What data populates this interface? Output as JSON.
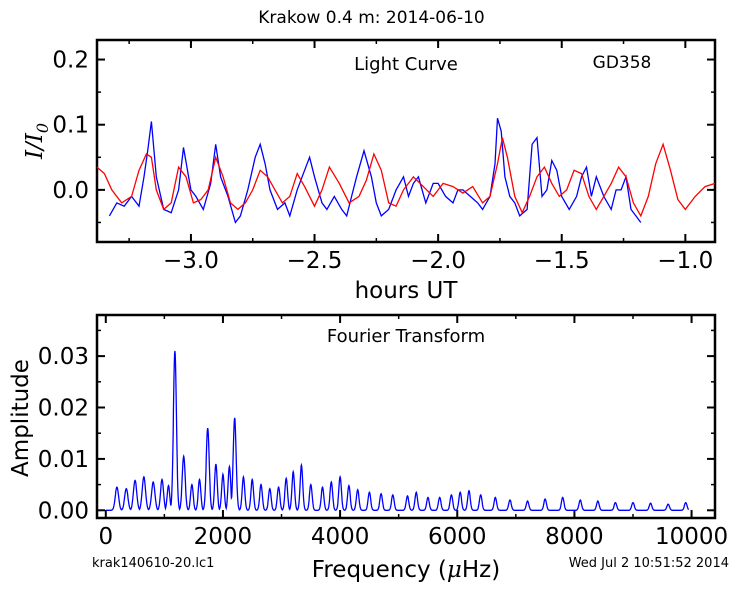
{
  "header": {
    "title": "Krakow 0.4 m:  2014-06-10",
    "footer_left": "krak140610-20.lc1",
    "footer_right": "Wed Jul  2 10:51:52 2014"
  },
  "chart_data": [
    {
      "type": "line",
      "title": "Light Curve",
      "annotation": "GD358",
      "xlabel": "hours UT",
      "ylabel_text": "I/I",
      "ylabel_subscript": "0",
      "xlim": [
        -3.38,
        -0.88
      ],
      "ylim": [
        -0.08,
        0.23
      ],
      "x_ticks": [
        -3.0,
        -2.5,
        -2.0,
        -1.5,
        -1.0
      ],
      "x_tick_labels": [
        "−3.0",
        "−2.5",
        "−2.0",
        "−1.5",
        "−1.0"
      ],
      "y_ticks": [
        0.0,
        0.1,
        0.2
      ],
      "y_tick_labels": [
        "0.0",
        "0.1",
        "0.2"
      ],
      "grid": false,
      "series": [
        {
          "color": "#0000ff",
          "x": [
            -3.33,
            -3.3,
            -3.27,
            -3.24,
            -3.21,
            -3.19,
            -3.175,
            -3.16,
            -3.14,
            -3.11,
            -3.08,
            -3.05,
            -3.03,
            -3.0,
            -2.98,
            -2.95,
            -2.92,
            -2.9,
            -2.88,
            -2.85,
            -2.82,
            -2.8,
            -2.77,
            -2.74,
            -2.72,
            -2.7,
            -2.68,
            -2.65,
            -2.62,
            -2.6,
            -2.57,
            -2.54,
            -2.52,
            -2.5,
            -2.47,
            -2.45,
            -2.42,
            -2.39,
            -2.37,
            -2.35,
            -2.33,
            -2.3,
            -2.27,
            -2.25,
            -2.23,
            -2.2,
            -2.17,
            -2.14,
            -2.12,
            -2.1,
            -2.08,
            -2.05,
            -2.02,
            -2.0,
            -1.97,
            -1.94,
            -1.92,
            -1.9,
            -1.87,
            -1.84,
            -1.82,
            -1.79,
            -1.77,
            -1.76,
            -1.745,
            -1.73,
            -1.71,
            -1.69,
            -1.67,
            -1.64,
            -1.62,
            -1.6,
            -1.58,
            -1.56,
            -1.54,
            -1.52,
            -1.5,
            -1.47,
            -1.44,
            -1.42,
            -1.4,
            -1.38,
            -1.36,
            -1.33,
            -1.3,
            -1.28,
            -1.26,
            -1.24,
            -1.22,
            -1.2,
            -1.18
          ],
          "y": [
            -0.04,
            -0.02,
            -0.025,
            -0.01,
            -0.025,
            0.02,
            0.06,
            0.105,
            0.02,
            -0.03,
            -0.035,
            0.0,
            0.065,
            0.0,
            -0.01,
            -0.03,
            0.01,
            0.07,
            0.02,
            -0.01,
            -0.05,
            -0.04,
            0.0,
            0.05,
            0.07,
            0.04,
            0.0,
            -0.03,
            -0.02,
            -0.04,
            0.0,
            0.03,
            0.05,
            0.02,
            -0.02,
            -0.03,
            -0.01,
            -0.03,
            -0.04,
            -0.01,
            0.02,
            0.06,
            0.02,
            -0.02,
            -0.04,
            -0.03,
            0.0,
            0.02,
            -0.01,
            0.01,
            0.02,
            -0.02,
            0.01,
            0.01,
            -0.01,
            -0.02,
            0.0,
            0.0,
            -0.01,
            -0.02,
            -0.03,
            -0.01,
            0.04,
            0.11,
            0.09,
            0.02,
            -0.01,
            -0.02,
            -0.04,
            -0.03,
            0.07,
            0.08,
            -0.01,
            0.0,
            0.045,
            0.03,
            -0.01,
            -0.03,
            -0.01,
            0.02,
            0.035,
            -0.01,
            0.02,
            -0.01,
            -0.03,
            0.0,
            0.0,
            0.02,
            -0.03,
            -0.04,
            -0.05
          ]
        },
        {
          "color": "#ff0000",
          "x": [
            -3.38,
            -3.35,
            -3.32,
            -3.28,
            -3.24,
            -3.21,
            -3.18,
            -3.16,
            -3.14,
            -3.11,
            -3.08,
            -3.05,
            -3.02,
            -2.99,
            -2.96,
            -2.93,
            -2.9,
            -2.87,
            -2.84,
            -2.81,
            -2.78,
            -2.75,
            -2.72,
            -2.69,
            -2.66,
            -2.63,
            -2.6,
            -2.57,
            -2.54,
            -2.5,
            -2.47,
            -2.44,
            -2.4,
            -2.36,
            -2.32,
            -2.29,
            -2.26,
            -2.23,
            -2.2,
            -2.17,
            -2.14,
            -2.1,
            -2.06,
            -2.02,
            -1.98,
            -1.94,
            -1.9,
            -1.86,
            -1.82,
            -1.79,
            -1.76,
            -1.74,
            -1.72,
            -1.69,
            -1.66,
            -1.63,
            -1.6,
            -1.57,
            -1.54,
            -1.51,
            -1.48,
            -1.45,
            -1.42,
            -1.39,
            -1.36,
            -1.33,
            -1.3,
            -1.27,
            -1.24,
            -1.21,
            -1.18,
            -1.15,
            -1.12,
            -1.09,
            -1.06,
            -1.03,
            -1.0,
            -0.96,
            -0.92,
            -0.88
          ],
          "y": [
            0.035,
            0.025,
            0.0,
            -0.02,
            -0.01,
            0.03,
            0.055,
            0.05,
            0.0,
            -0.03,
            -0.02,
            0.035,
            0.02,
            -0.02,
            -0.015,
            0.0,
            0.05,
            0.02,
            -0.02,
            -0.03,
            -0.02,
            0.0,
            0.03,
            0.02,
            0.0,
            -0.02,
            -0.01,
            0.025,
            0.005,
            -0.025,
            0.0,
            0.035,
            0.01,
            -0.02,
            -0.01,
            0.015,
            0.055,
            0.03,
            -0.02,
            -0.025,
            0.0,
            0.02,
            0.005,
            -0.01,
            0.01,
            0.005,
            -0.005,
            0.005,
            -0.02,
            -0.01,
            0.04,
            0.08,
            0.05,
            -0.01,
            -0.035,
            -0.01,
            0.02,
            0.035,
            0.01,
            -0.01,
            0.0,
            0.03,
            0.025,
            -0.01,
            -0.03,
            -0.01,
            0.01,
            0.035,
            0.02,
            -0.02,
            -0.04,
            -0.01,
            0.04,
            0.07,
            0.03,
            -0.015,
            -0.03,
            -0.01,
            0.005,
            0.01
          ]
        }
      ]
    },
    {
      "type": "line",
      "title": "Fourier Transform",
      "xlabel_text": "Frequency (",
      "xlabel_symbol": "μ",
      "xlabel_suffix": "Hz)",
      "ylabel": "Amplitude",
      "xlim": [
        -150,
        10400
      ],
      "ylim": [
        -0.0015,
        0.038
      ],
      "x_ticks": [
        0,
        2000,
        4000,
        6000,
        8000,
        10000
      ],
      "x_tick_labels": [
        "0",
        "2000",
        "4000",
        "6000",
        "8000",
        "10000"
      ],
      "y_ticks": [
        0.0,
        0.01,
        0.02,
        0.03
      ],
      "y_tick_labels": [
        "0.00",
        "0.01",
        "0.02",
        "0.03"
      ],
      "grid": false,
      "peaks": [
        {
          "f": 190,
          "a": 0.0045,
          "w": 45
        },
        {
          "f": 350,
          "a": 0.0042,
          "w": 45
        },
        {
          "f": 500,
          "a": 0.0058,
          "w": 45
        },
        {
          "f": 650,
          "a": 0.0065,
          "w": 45
        },
        {
          "f": 810,
          "a": 0.0055,
          "w": 45
        },
        {
          "f": 960,
          "a": 0.006,
          "w": 40
        },
        {
          "f": 1070,
          "a": 0.0048,
          "w": 35
        },
        {
          "f": 1180,
          "a": 0.031,
          "w": 40
        },
        {
          "f": 1330,
          "a": 0.0105,
          "w": 40
        },
        {
          "f": 1470,
          "a": 0.005,
          "w": 35
        },
        {
          "f": 1600,
          "a": 0.006,
          "w": 35
        },
        {
          "f": 1740,
          "a": 0.016,
          "w": 40
        },
        {
          "f": 1880,
          "a": 0.009,
          "w": 35
        },
        {
          "f": 2000,
          "a": 0.007,
          "w": 35
        },
        {
          "f": 2110,
          "a": 0.0085,
          "w": 35
        },
        {
          "f": 2200,
          "a": 0.018,
          "w": 40
        },
        {
          "f": 2350,
          "a": 0.0065,
          "w": 35
        },
        {
          "f": 2500,
          "a": 0.006,
          "w": 35
        },
        {
          "f": 2650,
          "a": 0.005,
          "w": 35
        },
        {
          "f": 2800,
          "a": 0.0042,
          "w": 35
        },
        {
          "f": 2950,
          "a": 0.0045,
          "w": 35
        },
        {
          "f": 3080,
          "a": 0.0062,
          "w": 35
        },
        {
          "f": 3200,
          "a": 0.0075,
          "w": 35
        },
        {
          "f": 3340,
          "a": 0.0088,
          "w": 35
        },
        {
          "f": 3500,
          "a": 0.005,
          "w": 35
        },
        {
          "f": 3700,
          "a": 0.0045,
          "w": 35
        },
        {
          "f": 3850,
          "a": 0.0055,
          "w": 35
        },
        {
          "f": 4000,
          "a": 0.0065,
          "w": 35
        },
        {
          "f": 4150,
          "a": 0.0048,
          "w": 35
        },
        {
          "f": 4300,
          "a": 0.004,
          "w": 35
        },
        {
          "f": 4500,
          "a": 0.0035,
          "w": 35
        },
        {
          "f": 4700,
          "a": 0.0032,
          "w": 35
        },
        {
          "f": 4900,
          "a": 0.003,
          "w": 35
        },
        {
          "f": 5150,
          "a": 0.0028,
          "w": 35
        },
        {
          "f": 5300,
          "a": 0.0035,
          "w": 35
        },
        {
          "f": 5500,
          "a": 0.0025,
          "w": 35
        },
        {
          "f": 5700,
          "a": 0.0025,
          "w": 35
        },
        {
          "f": 5900,
          "a": 0.003,
          "w": 35
        },
        {
          "f": 6050,
          "a": 0.0035,
          "w": 35
        },
        {
          "f": 6200,
          "a": 0.0038,
          "w": 35
        },
        {
          "f": 6400,
          "a": 0.003,
          "w": 35
        },
        {
          "f": 6650,
          "a": 0.0025,
          "w": 35
        },
        {
          "f": 6900,
          "a": 0.002,
          "w": 35
        },
        {
          "f": 7200,
          "a": 0.0018,
          "w": 35
        },
        {
          "f": 7500,
          "a": 0.0022,
          "w": 35
        },
        {
          "f": 7800,
          "a": 0.0025,
          "w": 35
        },
        {
          "f": 8100,
          "a": 0.002,
          "w": 35
        },
        {
          "f": 8400,
          "a": 0.0018,
          "w": 35
        },
        {
          "f": 8700,
          "a": 0.0015,
          "w": 35
        },
        {
          "f": 9000,
          "a": 0.0015,
          "w": 35
        },
        {
          "f": 9300,
          "a": 0.0014,
          "w": 35
        },
        {
          "f": 9600,
          "a": 0.0012,
          "w": 35
        },
        {
          "f": 9900,
          "a": 0.0015,
          "w": 35
        }
      ],
      "f_range": [
        0,
        9950
      ],
      "color": "#0000ff"
    }
  ]
}
